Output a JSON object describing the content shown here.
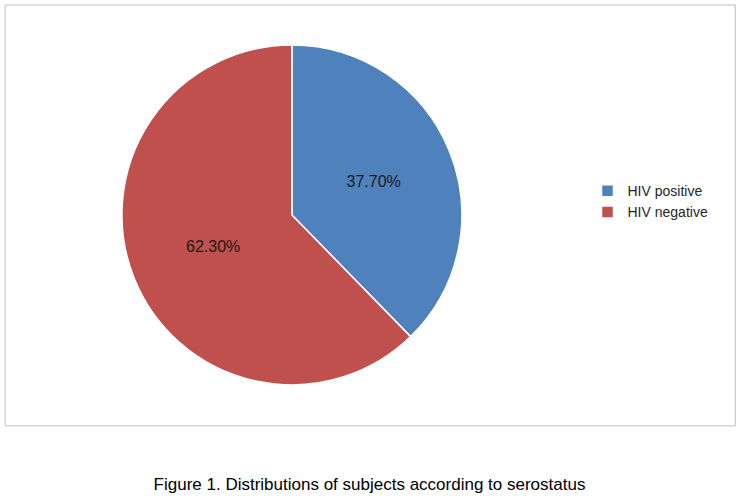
{
  "chart_data": {
    "type": "pie",
    "title": "Figure 1. Distributions of subjects according to serostatus",
    "categories": [
      "HIV positive",
      "HIV negative"
    ],
    "values": [
      37.7,
      62.3
    ],
    "value_labels": [
      "37.70%",
      "62.30%"
    ],
    "colors": [
      "#4F81BD",
      "#C0504D"
    ],
    "data_labels": true,
    "legend": "right"
  }
}
